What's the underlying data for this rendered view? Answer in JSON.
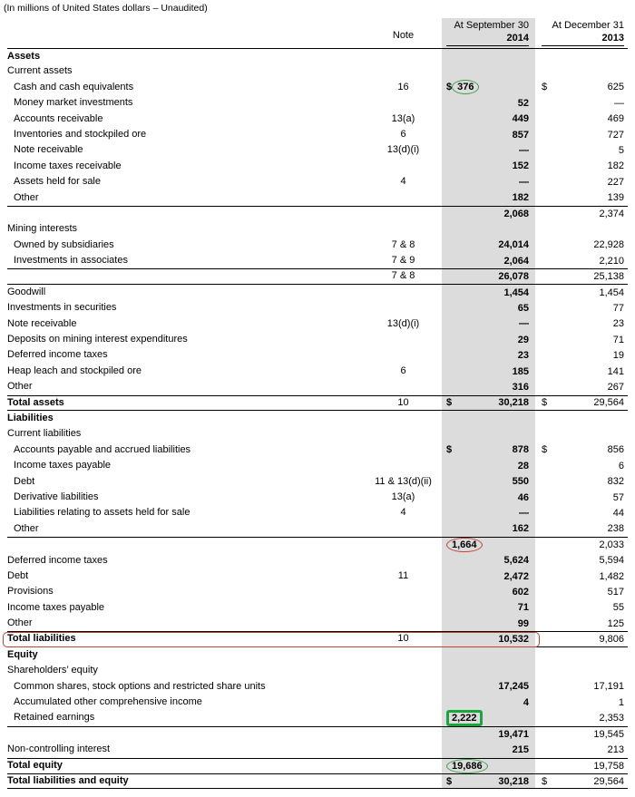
{
  "subtitle": "(In millions of United States dollars – Unaudited)",
  "header": {
    "note": "Note",
    "col2014": {
      "line1": "At September 30",
      "line2": "2014"
    },
    "col2013": {
      "line1": "At December 31",
      "line2": "2013"
    }
  },
  "colors": {
    "column_highlight": "#dcdcdc",
    "annotation_green": "#38a04a",
    "annotation_red": "#bf4437",
    "annotation_box_green": "#17a73a",
    "rule": "#000000"
  },
  "rows": [
    {
      "type": "section",
      "label": "Assets",
      "bt": true
    },
    {
      "type": "subheader",
      "label": "Current assets"
    },
    {
      "type": "item",
      "label": "Cash and cash equivalents",
      "note": "16",
      "d1": true,
      "v1": "376",
      "d2": true,
      "v2": "625",
      "annot": "green-ellipse"
    },
    {
      "type": "item",
      "label": "Money market investments",
      "v1": "52",
      "v2": "—"
    },
    {
      "type": "item",
      "label": "Accounts receivable",
      "note": "13(a)",
      "v1": "449",
      "v2": "469"
    },
    {
      "type": "item",
      "label": "Inventories and stockpiled ore",
      "note": "6",
      "v1": "857",
      "v2": "727"
    },
    {
      "type": "item",
      "label": "Note receivable",
      "note": "13(d)(i)",
      "v1": "—",
      "v2": "5"
    },
    {
      "type": "item",
      "label": "Income taxes receivable",
      "v1": "152",
      "v2": "182"
    },
    {
      "type": "item",
      "label": "Assets held for sale",
      "note": "4",
      "v1": "—",
      "v2": "227"
    },
    {
      "type": "item",
      "label": "Other",
      "v1": "182",
      "v2": "139"
    },
    {
      "type": "subtotal",
      "label": "",
      "v1": "2,068",
      "v2": "2,374",
      "bt": true
    },
    {
      "type": "subheader",
      "label": "Mining interests"
    },
    {
      "type": "item",
      "label": "Owned by subsidiaries",
      "note": "7 & 8",
      "v1": "24,014",
      "v2": "22,928"
    },
    {
      "type": "item",
      "label": "Investments in associates",
      "note": "7 & 9",
      "v1": "2,064",
      "v2": "2,210"
    },
    {
      "type": "subtotal",
      "label": "",
      "note": "7 & 8",
      "v1": "26,078",
      "v2": "25,138",
      "bt": true,
      "bb": true
    },
    {
      "type": "flush",
      "label": "Goodwill",
      "v1": "1,454",
      "v2": "1,454"
    },
    {
      "type": "flush",
      "label": "Investments in securities",
      "v1": "65",
      "v2": "77"
    },
    {
      "type": "flush",
      "label": "Note receivable",
      "note": "13(d)(i)",
      "v1": "—",
      "v2": "23"
    },
    {
      "type": "flush",
      "label": "Deposits on mining interest expenditures",
      "v1": "29",
      "v2": "71"
    },
    {
      "type": "flush",
      "label": "Deferred income taxes",
      "v1": "23",
      "v2": "19"
    },
    {
      "type": "flush",
      "label": "Heap leach and stockpiled ore",
      "note": "6",
      "v1": "185",
      "v2": "141"
    },
    {
      "type": "flush",
      "label": "Other",
      "v1": "316",
      "v2": "267"
    },
    {
      "type": "total",
      "label": "Total assets",
      "note": "10",
      "d1": true,
      "v1": "30,218",
      "d2": true,
      "v2": "29,564",
      "bt": true,
      "bb": true
    },
    {
      "type": "section",
      "label": "Liabilities"
    },
    {
      "type": "subheader",
      "label": "Current liabilities"
    },
    {
      "type": "item",
      "label": "Accounts payable and accrued liabilities",
      "d1": true,
      "v1": "878",
      "d2": true,
      "v2": "856"
    },
    {
      "type": "item",
      "label": "Income taxes payable",
      "v1": "28",
      "v2": "6"
    },
    {
      "type": "item",
      "label": "Debt",
      "note": "11 & 13(d)(ii)",
      "v1": "550",
      "v2": "832"
    },
    {
      "type": "item",
      "label": "Derivative liabilities",
      "note": "13(a)",
      "v1": "46",
      "v2": "57"
    },
    {
      "type": "item",
      "label": "Liabilities relating to assets held for sale",
      "note": "4",
      "v1": "—",
      "v2": "44"
    },
    {
      "type": "item",
      "label": "Other",
      "v1": "162",
      "v2": "238"
    },
    {
      "type": "subtotal",
      "label": "",
      "v1": "1,664",
      "v2": "2,033",
      "bt": true,
      "annot": "red-ellipse"
    },
    {
      "type": "flush",
      "label": "Deferred income taxes",
      "v1": "5,624",
      "v2": "5,594"
    },
    {
      "type": "flush",
      "label": "Debt",
      "note": "11",
      "v1": "2,472",
      "v2": "1,482"
    },
    {
      "type": "flush",
      "label": "Provisions",
      "v1": "602",
      "v2": "517"
    },
    {
      "type": "flush",
      "label": "Income taxes payable",
      "v1": "71",
      "v2": "55"
    },
    {
      "type": "flush",
      "label": "Other",
      "v1": "99",
      "v2": "125"
    },
    {
      "type": "total",
      "label": "Total liabilities",
      "note": "10",
      "v1": "10,532",
      "v2": "9,806",
      "bt": true,
      "bb": true,
      "row_annot": "red-box"
    },
    {
      "type": "section",
      "label": "Equity"
    },
    {
      "type": "subheader",
      "label": "Shareholders’ equity"
    },
    {
      "type": "item",
      "label": "Common shares, stock options and restricted share units",
      "v1": "17,245",
      "v2": "17,191"
    },
    {
      "type": "item",
      "label": "Accumulated other comprehensive income",
      "v1": "4",
      "v2": "1"
    },
    {
      "type": "item",
      "label": "Retained earnings",
      "v1": "2,222",
      "v2": "2,353",
      "annot": "green-box"
    },
    {
      "type": "subtotal",
      "label": "",
      "v1": "19,471",
      "v2": "19,545",
      "bt": true
    },
    {
      "type": "flush",
      "label": "Non-controlling interest",
      "v1": "215",
      "v2": "213"
    },
    {
      "type": "total",
      "label": "Total equity",
      "v1": "19,686",
      "v2": "19,758",
      "bt": true,
      "annot": "green-ellipse"
    },
    {
      "type": "total",
      "label": "Total liabilities and equity",
      "d1": true,
      "v1": "30,218",
      "d2": true,
      "v2": "29,564",
      "bt": true,
      "bb": true
    }
  ]
}
